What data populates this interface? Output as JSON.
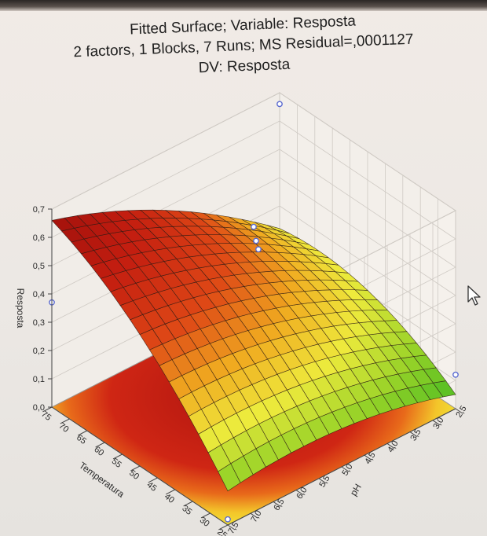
{
  "title_lines": [
    "Fitted Surface; Variable: Resposta",
    "2 factors, 1 Blocks, 7 Runs; MS Residual=,0001127",
    "DV: Resposta"
  ],
  "chart_data": {
    "type": "surface3d",
    "title": "Fitted Surface; Variable: Resposta",
    "subtitle": "2 factors, 1 Blocks, 7 Runs; MS Residual=,0001127",
    "dv_label": "DV: Resposta",
    "zlabel": "Resposta",
    "xlabel": "Temperatura",
    "ylabel": "pH",
    "x_ticks": [
      "75",
      "70",
      "65",
      "60",
      "55",
      "50",
      "45",
      "40",
      "35",
      "30",
      "25"
    ],
    "y_ticks": [
      "7,5",
      "7,0",
      "6,5",
      "6,0",
      "5,5",
      "5,0",
      "4,5",
      "4,0",
      "3,5",
      "3,0",
      "2,5"
    ],
    "z_ticks": [
      "0,7",
      "0,6",
      "0,5",
      "0,4",
      "0,3",
      "0,2",
      "0,1",
      "0,0"
    ],
    "xlim": [
      25,
      75
    ],
    "ylim": [
      2.5,
      7.5
    ],
    "zlim": [
      0.0,
      0.7
    ],
    "observed_points": [
      {
        "x": 75,
        "y": 2.5,
        "z": 0.66
      },
      {
        "x": 75,
        "y": 7.5,
        "z": 0.37
      },
      {
        "x": 25,
        "y": 2.5,
        "z": 0.12
      },
      {
        "x": 25,
        "y": 7.5,
        "z": 0.02
      },
      {
        "x": 50,
        "y": 5.0,
        "z": 0.64
      },
      {
        "x": 50,
        "y": 5.0,
        "z": 0.63
      },
      {
        "x": 50,
        "y": 5.0,
        "z": 0.64
      }
    ],
    "colors": [
      "#a80f0c",
      "#d42c12",
      "#f0b81a",
      "#f2ec34",
      "#2fbd24"
    ],
    "grid": true
  }
}
